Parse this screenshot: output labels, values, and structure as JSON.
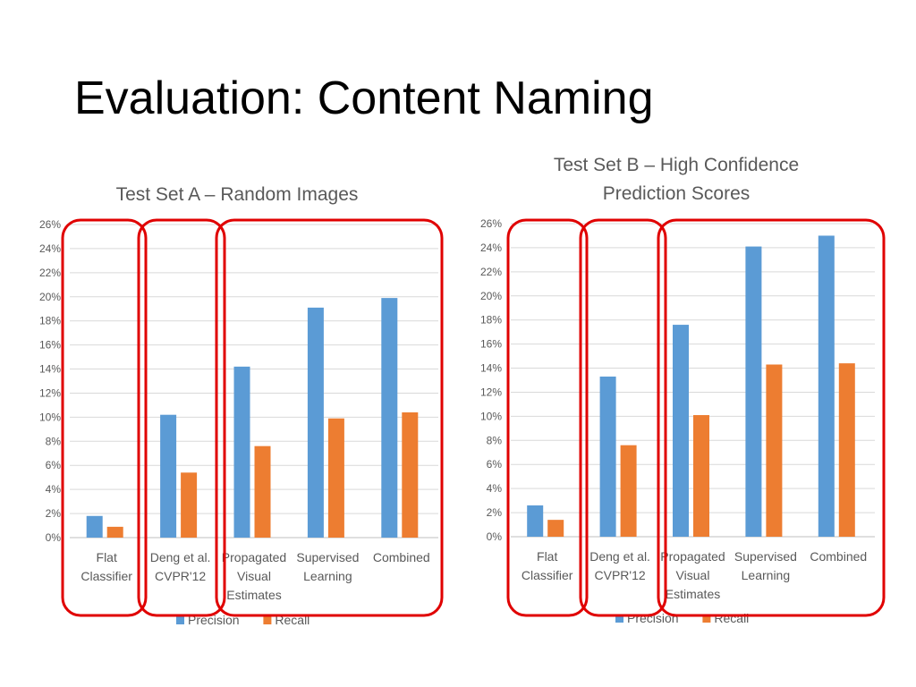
{
  "slide": {
    "title": "Evaluation: Content Naming"
  },
  "colors": {
    "precision": "#5b9bd5",
    "recall": "#ed7d31",
    "highlight": "#e00000",
    "grid": "#d9d9d9",
    "text": "#595959"
  },
  "chart_data": [
    {
      "type": "bar",
      "title": [
        "Test Set A – Random Images"
      ],
      "categories": [
        [
          "Flat",
          "Classifier"
        ],
        [
          "Deng et al.",
          "CVPR'12"
        ],
        [
          "Propagated",
          "Visual",
          "Estimates"
        ],
        [
          "Supervised",
          "Learning"
        ],
        [
          "Combined"
        ]
      ],
      "series": [
        {
          "name": "Precision",
          "values": [
            1.8,
            10.2,
            14.2,
            19.1,
            19.9
          ]
        },
        {
          "name": "Recall",
          "values": [
            0.9,
            5.4,
            7.6,
            9.9,
            10.4
          ]
        }
      ],
      "ylim": [
        0,
        26
      ],
      "ytick_step": 2,
      "ytick_format": "percent",
      "grid": true,
      "legend": "bottom",
      "highlight_groups": [
        [
          0
        ],
        [
          1
        ],
        [
          2,
          3,
          4
        ]
      ]
    },
    {
      "type": "bar",
      "title": [
        "Test Set B – High Confidence",
        "Prediction Scores"
      ],
      "categories": [
        [
          "Flat",
          "Classifier"
        ],
        [
          "Deng et al.",
          "CVPR'12"
        ],
        [
          "Propagated",
          "Visual",
          "Estimates"
        ],
        [
          "Supervised",
          "Learning"
        ],
        [
          "Combined"
        ]
      ],
      "series": [
        {
          "name": "Precision",
          "values": [
            2.6,
            13.3,
            17.6,
            24.1,
            25.0
          ]
        },
        {
          "name": "Recall",
          "values": [
            1.4,
            7.6,
            10.1,
            14.3,
            14.4
          ]
        }
      ],
      "ylim": [
        0,
        26
      ],
      "ytick_step": 2,
      "ytick_format": "percent",
      "grid": true,
      "legend": "bottom",
      "highlight_groups": [
        [
          0
        ],
        [
          1
        ],
        [
          2,
          3,
          4
        ]
      ]
    }
  ]
}
